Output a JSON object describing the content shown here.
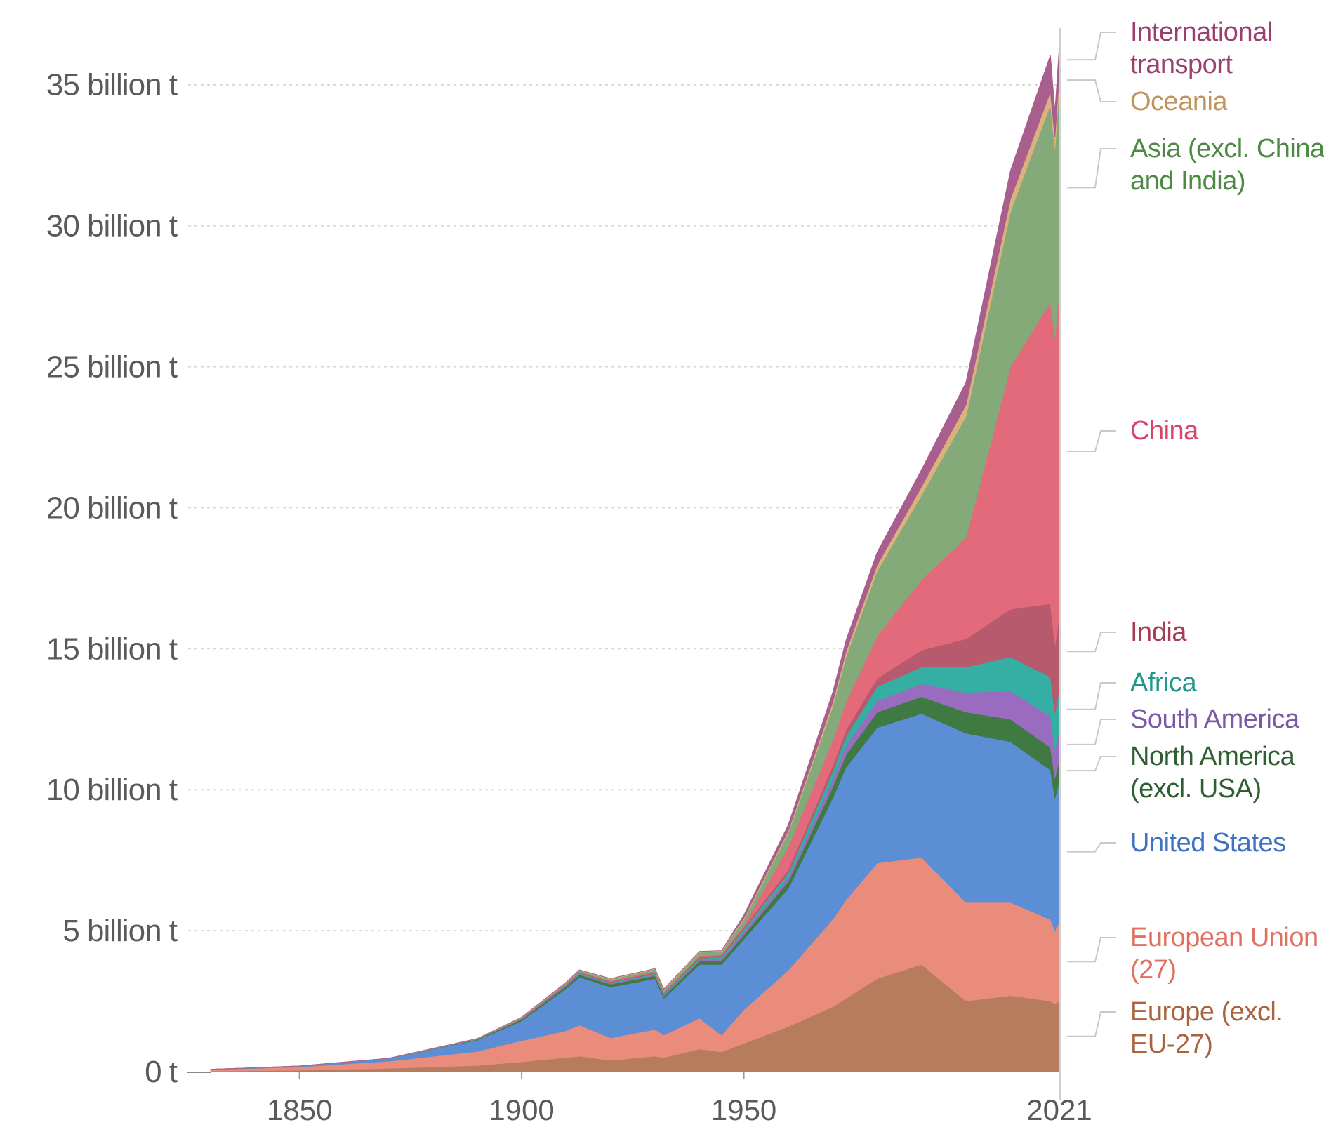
{
  "chart_data": {
    "type": "area",
    "stacked": true,
    "title": "",
    "xlabel": "",
    "ylabel": "",
    "xlim": [
      1830,
      2021
    ],
    "ylim": [
      0,
      37
    ],
    "grid": true,
    "legend_placement": "right (inline labels)",
    "y_ticks": [
      {
        "value": 0,
        "label": "0 t"
      },
      {
        "value": 5,
        "label": "5 billion t"
      },
      {
        "value": 10,
        "label": "10 billion t"
      },
      {
        "value": 15,
        "label": "15 billion t"
      },
      {
        "value": 20,
        "label": "20 billion t"
      },
      {
        "value": 25,
        "label": "25 billion t"
      },
      {
        "value": 30,
        "label": "30 billion t"
      },
      {
        "value": 35,
        "label": "35 billion t"
      }
    ],
    "x_ticks": [
      {
        "value": 1850,
        "label": "1850"
      },
      {
        "value": 1900,
        "label": "1900"
      },
      {
        "value": 1950,
        "label": "1950"
      },
      {
        "value": 2021,
        "label": "2021"
      }
    ],
    "x": [
      1830,
      1850,
      1870,
      1890,
      1900,
      1910,
      1913,
      1920,
      1930,
      1932,
      1940,
      1945,
      1950,
      1960,
      1970,
      1973,
      1980,
      1990,
      2000,
      2010,
      2019,
      2020,
      2021
    ],
    "series": [
      {
        "name": "Europe (excl. EU-27)",
        "label_lines": [
          "Europe (excl.",
          "EU-27)"
        ],
        "color": "#b67c5c",
        "label_color": "#a8643f",
        "values": [
          0.02,
          0.05,
          0.12,
          0.22,
          0.35,
          0.5,
          0.55,
          0.4,
          0.55,
          0.5,
          0.8,
          0.7,
          1.0,
          1.6,
          2.3,
          2.6,
          3.3,
          3.8,
          2.5,
          2.7,
          2.5,
          2.4,
          2.5
        ]
      },
      {
        "name": "European Union (27)",
        "label_lines": [
          "European Union",
          "(27)"
        ],
        "color": "#e98c7c",
        "label_color": "#e0705f",
        "values": [
          0.05,
          0.12,
          0.25,
          0.5,
          0.75,
          0.95,
          1.1,
          0.8,
          0.95,
          0.8,
          1.1,
          0.6,
          1.2,
          2.0,
          3.1,
          3.5,
          4.1,
          3.8,
          3.5,
          3.3,
          2.9,
          2.6,
          2.8
        ]
      },
      {
        "name": "United States",
        "label_lines": [
          "United States"
        ],
        "color": "#5b8ed5",
        "label_color": "#3f72c0",
        "values": [
          0.01,
          0.03,
          0.1,
          0.4,
          0.7,
          1.5,
          1.7,
          1.8,
          1.8,
          1.3,
          1.9,
          2.5,
          2.5,
          2.9,
          4.3,
          4.7,
          4.8,
          5.1,
          6.0,
          5.7,
          5.3,
          4.7,
          5.0
        ]
      },
      {
        "name": "North America (excl. USA)",
        "label_lines": [
          "North America",
          "(excl. USA)"
        ],
        "color": "#3f7a42",
        "label_color": "#2f5f31",
        "values": [
          0,
          0,
          0,
          0.02,
          0.05,
          0.08,
          0.09,
          0.1,
          0.1,
          0.08,
          0.12,
          0.14,
          0.15,
          0.25,
          0.4,
          0.45,
          0.55,
          0.6,
          0.75,
          0.8,
          0.8,
          0.72,
          0.75
        ]
      },
      {
        "name": "South America",
        "label_lines": [
          "South America"
        ],
        "color": "#9a6cbf",
        "label_color": "#7d58a8",
        "values": [
          0,
          0,
          0,
          0.005,
          0.01,
          0.02,
          0.03,
          0.03,
          0.04,
          0.04,
          0.05,
          0.06,
          0.1,
          0.15,
          0.25,
          0.3,
          0.4,
          0.45,
          0.7,
          1.0,
          1.1,
          1.0,
          1.1
        ]
      },
      {
        "name": "Africa",
        "label_lines": [
          "Africa"
        ],
        "color": "#35aea3",
        "label_color": "#1f978c",
        "values": [
          0,
          0,
          0,
          0.005,
          0.01,
          0.02,
          0.03,
          0.03,
          0.04,
          0.04,
          0.05,
          0.07,
          0.1,
          0.15,
          0.3,
          0.35,
          0.5,
          0.6,
          0.9,
          1.2,
          1.4,
          1.3,
          1.4
        ]
      },
      {
        "name": "India",
        "label_lines": [
          "India"
        ],
        "color": "#b85a6e",
        "label_color": "#a63c58",
        "values": [
          0,
          0,
          0,
          0.01,
          0.02,
          0.03,
          0.03,
          0.03,
          0.04,
          0.04,
          0.05,
          0.06,
          0.07,
          0.12,
          0.2,
          0.22,
          0.3,
          0.6,
          1.0,
          1.7,
          2.6,
          2.4,
          2.7
        ]
      },
      {
        "name": "China",
        "label_lines": [
          "China"
        ],
        "color": "#e26a7b",
        "label_color": "#d9446a",
        "values": [
          0,
          0,
          0,
          0,
          0.01,
          0.02,
          0.02,
          0.03,
          0.03,
          0.03,
          0.04,
          0.03,
          0.08,
          0.8,
          0.9,
          1.0,
          1.5,
          2.5,
          3.6,
          8.6,
          10.7,
          10.9,
          11.5
        ]
      },
      {
        "name": "Asia (excl. China and India)",
        "label_lines": [
          "Asia (excl. China",
          "and India)"
        ],
        "color": "#83aa78",
        "label_color": "#4f8a45",
        "values": [
          0,
          0,
          0,
          0.01,
          0.02,
          0.04,
          0.05,
          0.06,
          0.08,
          0.08,
          0.12,
          0.1,
          0.2,
          0.5,
          1.2,
          1.6,
          2.3,
          3.0,
          4.3,
          5.5,
          7.0,
          6.7,
          7.2
        ]
      },
      {
        "name": "Oceania",
        "label_lines": [
          "Oceania"
        ],
        "color": "#dcb27c",
        "label_color": "#c1935a",
        "values": [
          0,
          0,
          0,
          0.003,
          0.01,
          0.01,
          0.01,
          0.02,
          0.02,
          0.02,
          0.03,
          0.03,
          0.05,
          0.08,
          0.15,
          0.18,
          0.22,
          0.3,
          0.4,
          0.45,
          0.45,
          0.43,
          0.43
        ]
      },
      {
        "name": "International transport",
        "label_lines": [
          "International",
          "transport"
        ],
        "color": "#a85f8e",
        "label_color": "#9a3f6e",
        "values": [
          0,
          0,
          0,
          0,
          0,
          0,
          0,
          0,
          0,
          0,
          0,
          0,
          0.1,
          0.2,
          0.35,
          0.4,
          0.45,
          0.6,
          0.8,
          1.0,
          1.3,
          0.9,
          1.0
        ]
      }
    ]
  }
}
